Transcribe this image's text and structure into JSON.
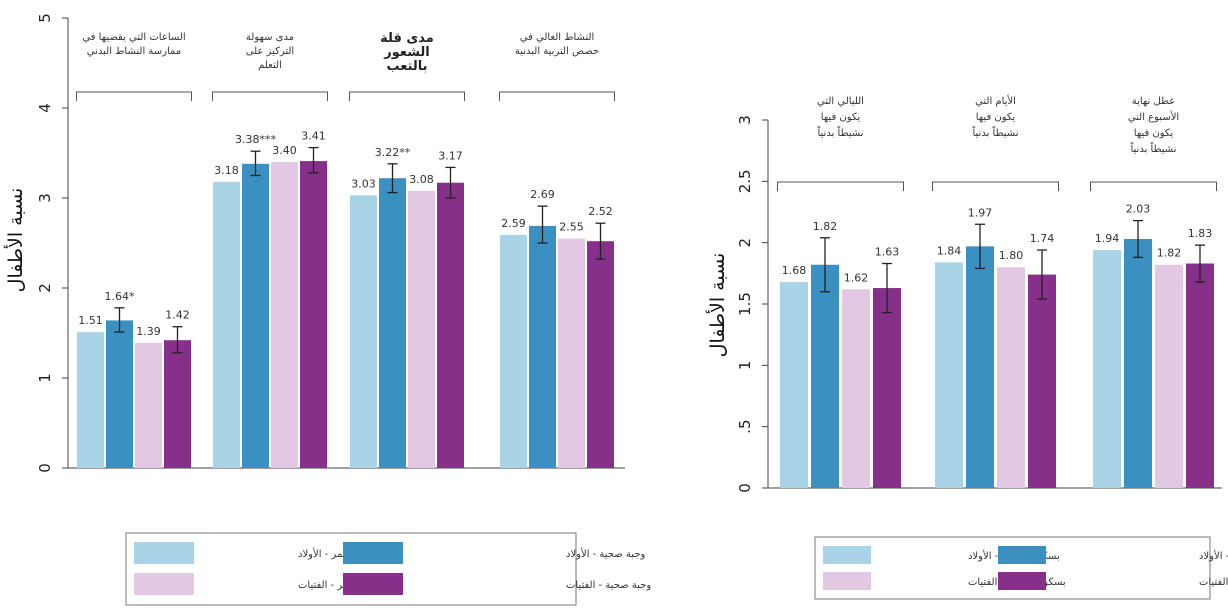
{
  "chart_data": [
    {
      "type": "bar",
      "ylabel": "نسبة الأطفال",
      "ylim": [
        0,
        5
      ],
      "yticks": [
        "0",
        "1",
        "2",
        "3",
        "4",
        "5"
      ],
      "grid": false,
      "colors": [
        "#a9d3e7",
        "#3a90c0",
        "#e2c8e2",
        "#86308a"
      ],
      "groups": [
        {
          "label_lines": [
            "الساعات التي يقضيها في",
            "ممارسة النشاط البدني"
          ],
          "bold": false,
          "values": [
            1.51,
            1.64,
            1.39,
            1.42
          ],
          "labels": [
            "1.51",
            "1.64*",
            "1.39",
            "1.42"
          ],
          "err": [
            null,
            [
              1.51,
              1.78
            ],
            null,
            [
              1.28,
              1.57
            ]
          ]
        },
        {
          "label_lines": [
            "مدى سهولة",
            "التركيز على",
            "التعلم"
          ],
          "bold": false,
          "values": [
            3.18,
            3.38,
            3.4,
            3.41
          ],
          "labels": [
            "3.18",
            "3.38***",
            "3.40",
            "3.41"
          ],
          "err": [
            null,
            [
              3.25,
              3.52
            ],
            null,
            [
              3.28,
              3.56
            ]
          ]
        },
        {
          "label_lines": [
            "مدى قلة",
            "الشعور",
            "بالتعب"
          ],
          "bold": true,
          "values": [
            3.03,
            3.22,
            3.08,
            3.17
          ],
          "labels": [
            "3.03",
            "3.22**",
            "3.08",
            "3.17"
          ],
          "err": [
            null,
            [
              3.06,
              3.38
            ],
            null,
            [
              3.0,
              3.34
            ]
          ]
        },
        {
          "label_lines": [
            "النشاط العالي في",
            "حصص التربية البدنية"
          ],
          "bold": false,
          "values": [
            2.59,
            2.69,
            2.55,
            2.52
          ],
          "labels": [
            "2.59",
            "2.69",
            "2.55",
            "2.52"
          ],
          "err": [
            null,
            [
              2.5,
              2.91
            ],
            null,
            [
              2.32,
              2.72
            ]
          ]
        }
      ],
      "legend": [
        "بسكويت التمر - الأولاد",
        "وجبة صحية - الأولاد",
        "بسكويت التمر - الفتيات",
        "وجبة صحية - الفتيات"
      ],
      "legend_position": "bottom"
    },
    {
      "type": "bar",
      "ylabel": "نسبة الأطفال",
      "ylim": [
        0,
        3
      ],
      "yticks": [
        "0",
        ".5",
        "1",
        "1.5",
        "2",
        "2.5",
        "3"
      ],
      "grid": false,
      "colors": [
        "#a9d3e7",
        "#3a90c0",
        "#e2c8e2",
        "#86308a"
      ],
      "groups": [
        {
          "label_lines": [
            "الليالي التي",
            "يكون فيها",
            "نشيطاً بدنياً"
          ],
          "bold": false,
          "values": [
            1.68,
            1.82,
            1.62,
            1.63
          ],
          "labels": [
            "1.68",
            "1.82",
            "1.62",
            "1.63"
          ],
          "err": [
            null,
            [
              1.6,
              2.04
            ],
            null,
            [
              1.43,
              1.83
            ]
          ]
        },
        {
          "label_lines": [
            "الأيام التي",
            "يكون فيها",
            "نشيطاً بدنياً"
          ],
          "bold": false,
          "values": [
            1.84,
            1.97,
            1.8,
            1.74
          ],
          "labels": [
            "1.84",
            "1.97",
            "1.80",
            "1.74"
          ],
          "err": [
            null,
            [
              1.79,
              2.15
            ],
            null,
            [
              1.54,
              1.94
            ]
          ]
        },
        {
          "label_lines": [
            "عطل نهاية",
            "الأسبوع التي",
            "يكون فيها",
            "نشيطاً بدنياً"
          ],
          "bold": false,
          "values": [
            1.94,
            2.03,
            1.82,
            1.83
          ],
          "labels": [
            "1.94",
            "2.03",
            "1.82",
            "1.83"
          ],
          "err": [
            null,
            [
              1.88,
              2.18
            ],
            null,
            [
              1.68,
              1.98
            ]
          ]
        }
      ],
      "legend": [
        "بسكويت التمر - الأولاد",
        "وجبة صحية - الأولاد",
        "بسكويت التمر - الفتيات",
        "وجبة صحية - الفتيات"
      ],
      "legend_position": "bottom"
    }
  ]
}
